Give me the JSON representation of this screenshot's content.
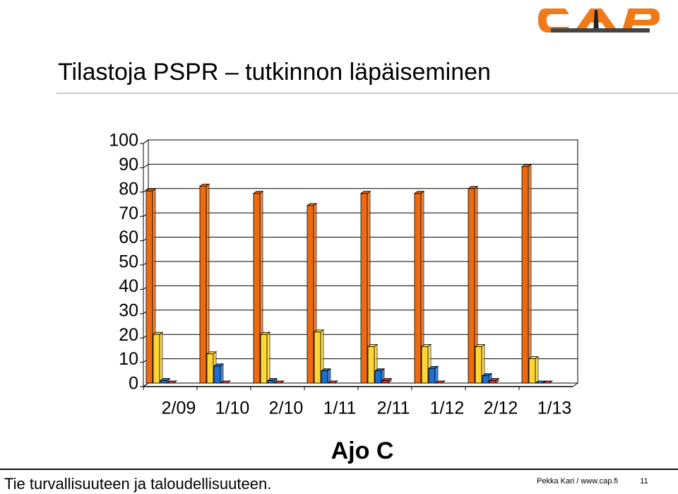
{
  "chart_data": {
    "type": "bar3d",
    "title": "Tilastoja PSPR – tutkinnon läpäiseminen",
    "x_label": "Ajo C",
    "categories": [
      "2/09",
      "1/10",
      "2/10",
      "1/11",
      "2/11",
      "1/12",
      "2/12",
      "1/13"
    ],
    "series": [
      {
        "color": "#ee6a10",
        "values": [
          79,
          81,
          78,
          73,
          78,
          78,
          80,
          89
        ]
      },
      {
        "color": "#ffd633",
        "values": [
          20,
          12,
          20,
          21,
          15,
          15,
          15,
          10
        ]
      },
      {
        "color": "#1a6fd0",
        "values": [
          1,
          7,
          1,
          5,
          5,
          6,
          3,
          0
        ]
      },
      {
        "color": "#e0302a",
        "values": [
          0,
          0,
          0,
          0,
          1,
          0,
          1,
          0
        ]
      }
    ],
    "ylim": [
      0,
      100
    ],
    "yticks": [
      0,
      10,
      20,
      30,
      40,
      50,
      60,
      70,
      80,
      90,
      100
    ],
    "grid": true
  },
  "footer": {
    "left": "Tie turvallisuuteen ja taloudellisuuteen.",
    "author": "Pekka Kari / www.cap.fi",
    "page": "11"
  }
}
